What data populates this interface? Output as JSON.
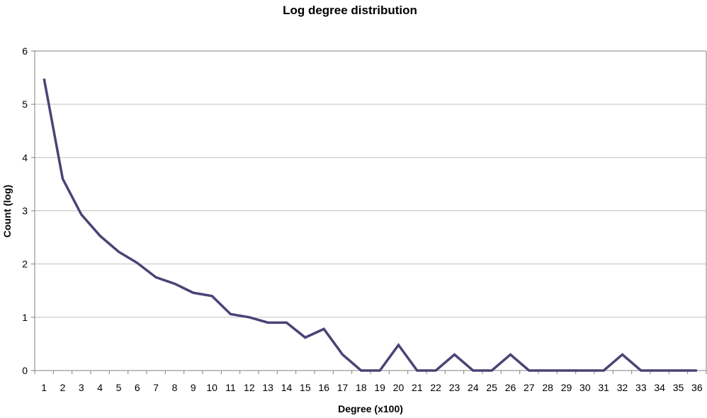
{
  "chart_data": {
    "type": "line",
    "title": "Log degree distribution",
    "xlabel": "Degree (x100)",
    "ylabel": "Count (log)",
    "categories": [
      "1",
      "2",
      "3",
      "4",
      "5",
      "6",
      "7",
      "8",
      "9",
      "10",
      "11",
      "12",
      "13",
      "14",
      "15",
      "16",
      "17",
      "18",
      "19",
      "20",
      "21",
      "22",
      "23",
      "24",
      "25",
      "26",
      "27",
      "28",
      "29",
      "30",
      "31",
      "32",
      "33",
      "34",
      "35",
      "36"
    ],
    "series": [
      {
        "values": [
          5.48,
          3.6,
          2.93,
          2.53,
          2.23,
          2.02,
          1.75,
          1.63,
          1.46,
          1.4,
          1.06,
          1.0,
          0.9,
          0.9,
          0.62,
          0.78,
          0.3,
          0.0,
          0.0,
          0.48,
          0.0,
          0.0,
          0.3,
          0.0,
          0.0,
          0.3,
          0.0,
          0.0,
          0.0,
          0.0,
          0.0,
          0.3,
          0.0,
          0.0,
          0.0,
          0.0
        ]
      }
    ],
    "ylim": [
      0,
      6
    ],
    "yticks": [
      "0",
      "1",
      "2",
      "3",
      "4",
      "5",
      "6"
    ],
    "grid": true,
    "legend": "none",
    "colors": {
      "line": "#4b4375",
      "grid": "#c0c0c0",
      "axis": "#808080"
    }
  }
}
